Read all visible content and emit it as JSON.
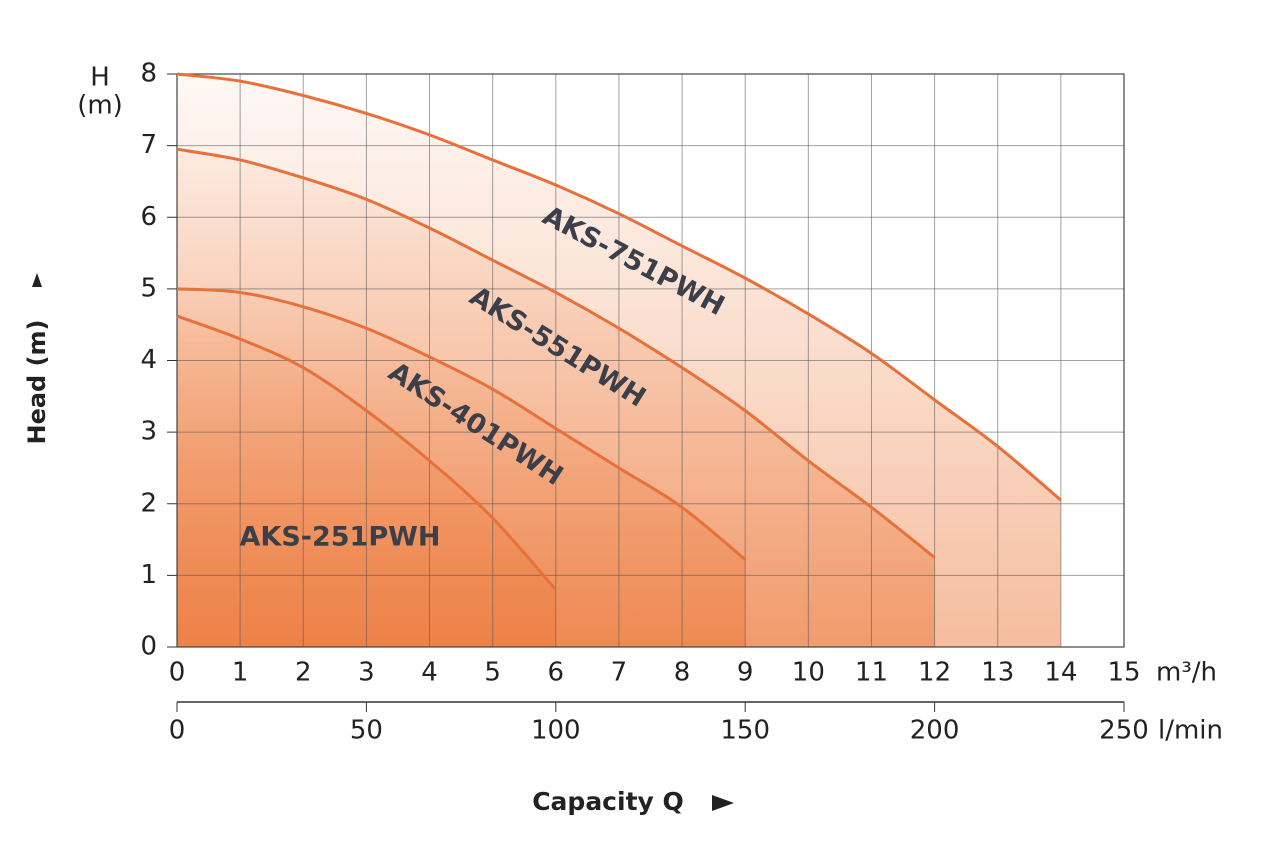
{
  "chart_data": {
    "type": "line",
    "y_label": "Head (m)",
    "y_unit_top": "H",
    "y_unit_bottom": "(m)",
    "x_label": "Capacity Q",
    "x_unit": "m³/h",
    "x2_unit": "l/min",
    "x": [
      0,
      1,
      2,
      3,
      4,
      5,
      6,
      7,
      8,
      9,
      10,
      11,
      12,
      13,
      14
    ],
    "series": [
      {
        "name": "AKS-251PWH",
        "color": "#e8703a",
        "values": [
          4.62,
          4.3,
          3.9,
          3.3,
          2.6,
          1.8,
          0.8,
          null,
          null,
          null,
          null,
          null,
          null,
          null,
          null
        ]
      },
      {
        "name": "AKS-401PWH",
        "color": "#e8703a",
        "values": [
          5.0,
          4.95,
          4.75,
          4.45,
          4.05,
          3.6,
          3.05,
          2.5,
          1.95,
          1.22,
          null,
          null,
          null,
          null,
          null
        ]
      },
      {
        "name": "AKS-551PWH",
        "color": "#e8703a",
        "values": [
          6.95,
          6.8,
          6.55,
          6.25,
          5.85,
          5.4,
          4.95,
          4.45,
          3.9,
          3.3,
          2.6,
          1.95,
          1.25,
          null,
          null
        ]
      },
      {
        "name": "AKS-751PWH",
        "color": "#e8703a",
        "values": [
          8.0,
          7.9,
          7.7,
          7.45,
          7.15,
          6.8,
          6.45,
          6.05,
          5.6,
          5.15,
          4.65,
          4.1,
          3.45,
          2.8,
          2.05
        ]
      }
    ],
    "xlim": [
      0,
      15
    ],
    "xticks": [
      0,
      1,
      2,
      3,
      4,
      5,
      6,
      7,
      8,
      9,
      10,
      11,
      12,
      13,
      14,
      15
    ],
    "ylim": [
      0,
      8
    ],
    "yticks": [
      0,
      1,
      2,
      3,
      4,
      5,
      6,
      7,
      8
    ],
    "x2lim": [
      0,
      250
    ],
    "x2ticks": [
      0,
      50,
      100,
      150,
      200,
      250
    ],
    "grid": true
  }
}
